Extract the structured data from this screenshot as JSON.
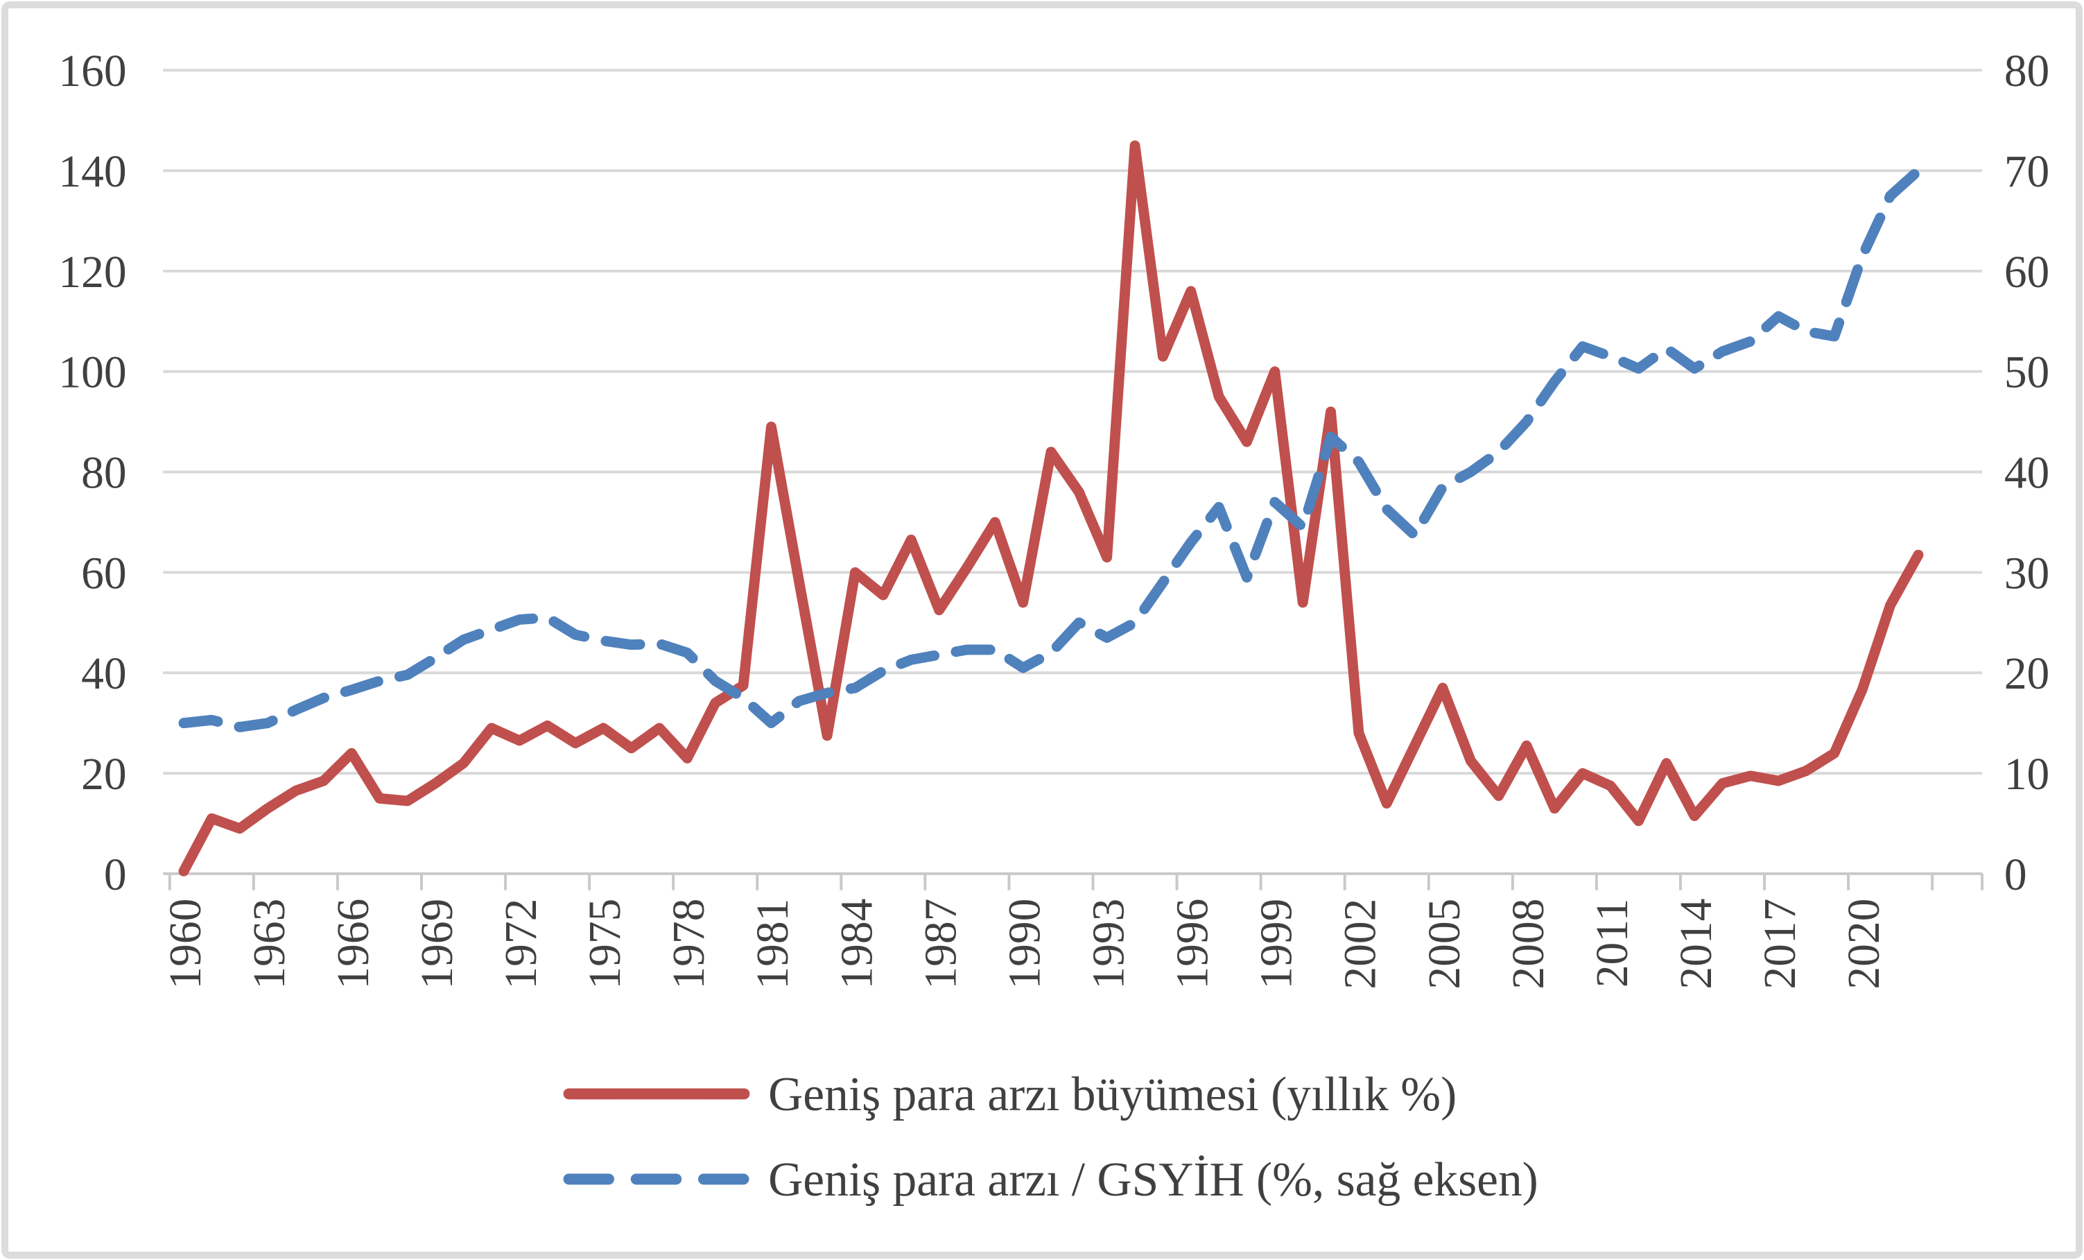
{
  "chart_data": {
    "type": "line",
    "title": "",
    "x": [
      1960,
      1961,
      1962,
      1963,
      1964,
      1965,
      1966,
      1967,
      1968,
      1969,
      1970,
      1971,
      1972,
      1973,
      1974,
      1975,
      1976,
      1977,
      1978,
      1979,
      1980,
      1981,
      1982,
      1983,
      1984,
      1985,
      1986,
      1987,
      1988,
      1989,
      1990,
      1991,
      1992,
      1993,
      1994,
      1995,
      1996,
      1997,
      1998,
      1999,
      2000,
      2001,
      2002,
      2003,
      2004,
      2005,
      2006,
      2007,
      2008,
      2009,
      2010,
      2011,
      2012,
      2013,
      2014,
      2015,
      2016,
      2017,
      2018,
      2019,
      2020,
      2021,
      2022
    ],
    "series": [
      {
        "name": "Geniş para arzı büyümesi (yıllık %)",
        "axis": "left",
        "color": "#C0504D",
        "style": "solid",
        "values": [
          0.5,
          11,
          9,
          13,
          16.5,
          18.5,
          24,
          15,
          14.5,
          18,
          22,
          29,
          26.5,
          29.5,
          26,
          29,
          25,
          29,
          23,
          34,
          37.5,
          89,
          58,
          27.5,
          60,
          55.5,
          66.5,
          52.5,
          61,
          70,
          54,
          84,
          76,
          63,
          145,
          103,
          116,
          95,
          86,
          100,
          54,
          92,
          28,
          14,
          25.5,
          37,
          22.5,
          15.5,
          25.5,
          13,
          20,
          17.5,
          10.5,
          22,
          11.5,
          18,
          19.5,
          18.5,
          20.5,
          24,
          36.7,
          53.5,
          63.5
        ]
      },
      {
        "name": "Geniş para arzı / GSYİH (%, sağ eksen)",
        "axis": "right",
        "color": "#4F81BD",
        "style": "dashed",
        "values": [
          15,
          15.3,
          14.6,
          15,
          16.3,
          17.5,
          18.3,
          19.2,
          19.8,
          21.5,
          23.3,
          24.3,
          25.3,
          25.5,
          23.8,
          23.2,
          22.8,
          22.9,
          22,
          19.2,
          17.5,
          15,
          17.2,
          18,
          18.5,
          20.2,
          21.3,
          21.8,
          22.3,
          22.3,
          20.5,
          22,
          25,
          23.5,
          25,
          29,
          33,
          36.5,
          29.5,
          37,
          34.5,
          43.5,
          41,
          36.3,
          33.7,
          38.5,
          40,
          42,
          45,
          49,
          52.5,
          51.5,
          50.3,
          52.3,
          50.3,
          52,
          53,
          55.5,
          54,
          53.5,
          61.5,
          67.5,
          70
        ]
      }
    ],
    "left_axis": {
      "min": 0,
      "max": 160,
      "step": 20,
      "ticks": [
        0,
        20,
        40,
        60,
        80,
        100,
        120,
        140,
        160
      ]
    },
    "right_axis": {
      "min": 0,
      "max": 80,
      "step": 10,
      "ticks": [
        0,
        10,
        20,
        30,
        40,
        50,
        60,
        70,
        80
      ]
    },
    "x_axis": {
      "tick_labels": [
        "1960",
        "1963",
        "1966",
        "1969",
        "1972",
        "1975",
        "1978",
        "1981",
        "1984",
        "1987",
        "1990",
        "1993",
        "1996",
        "1999",
        "2002",
        "2005",
        "2008",
        "2011",
        "2014",
        "2017",
        "2020"
      ],
      "label_every_years": 3
    },
    "grid": true,
    "legend_position": "bottom"
  },
  "colors": {
    "red": "#C0504D",
    "blue": "#4F81BD",
    "gridline": "#D9D9D9",
    "axis": "#C9C9C9",
    "text": "#404040",
    "frame": "#DCDCDC"
  }
}
